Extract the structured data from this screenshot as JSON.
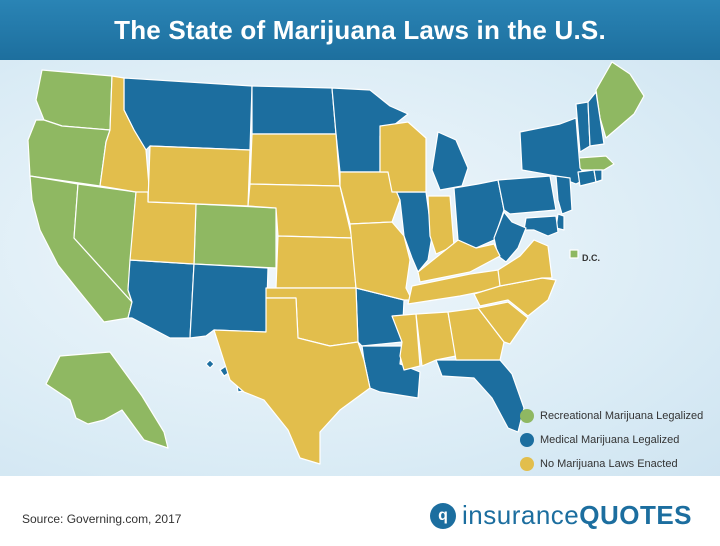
{
  "title": "The State of Marijuana Laws in the U.S.",
  "colors": {
    "recreational": "#8fb862",
    "medical": "#1c6e9f",
    "none": "#e2be4c",
    "border": "#ffffff"
  },
  "legend": [
    {
      "key": "recreational",
      "label": "Recreational Marijuana Legalized"
    },
    {
      "key": "medical",
      "label": "Medical Marijuana Legalized"
    },
    {
      "key": "none",
      "label": "No Marijuana Laws Enacted"
    }
  ],
  "annotations": {
    "dc": "D.C."
  },
  "source": "Source: Governing.com, 2017",
  "brand": {
    "part1": "insurance",
    "part2": "QUOTES",
    "icon": "iq-logo-icon"
  },
  "states": {
    "WA": "recreational",
    "OR": "recreational",
    "CA": "recreational",
    "NV": "recreational",
    "CO": "recreational",
    "AK": "recreational",
    "ME": "recreational",
    "MA": "recreational",
    "DC": "recreational",
    "MT": "medical",
    "ND": "medical",
    "MN": "medical",
    "AZ": "medical",
    "NM": "medical",
    "AR": "medical",
    "LA": "medical",
    "FL": "medical",
    "IL": "medical",
    "MI": "medical",
    "OH": "medical",
    "PA": "medical",
    "NY": "medical",
    "VT": "medical",
    "NH": "medical",
    "CT": "medical",
    "RI": "medical",
    "NJ": "medical",
    "DE": "medical",
    "MD": "medical",
    "WV": "medical",
    "HI": "medical",
    "ID": "none",
    "WY": "none",
    "UT": "none",
    "SD": "none",
    "NE": "none",
    "KS": "none",
    "OK": "none",
    "TX": "none",
    "IA": "none",
    "MO": "none",
    "WI": "none",
    "IN": "none",
    "KY": "none",
    "TN": "none",
    "MS": "none",
    "AL": "none",
    "GA": "none",
    "SC": "none",
    "NC": "none",
    "VA": "none"
  }
}
